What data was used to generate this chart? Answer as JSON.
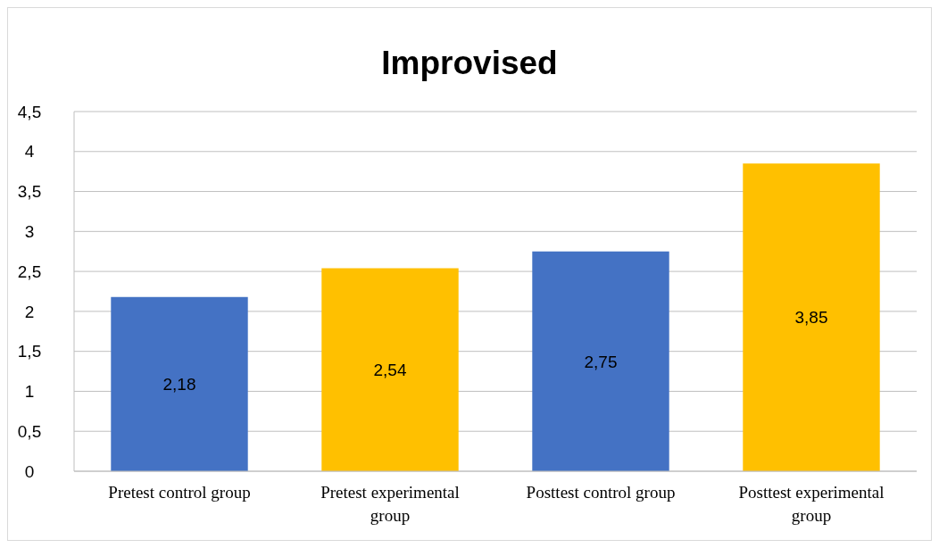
{
  "chart_data": {
    "type": "bar",
    "title": "Improvised",
    "categories": [
      "Pretest control group",
      "Pretest experimental group",
      "Posttest control group",
      "Posttest experimental group"
    ],
    "values": [
      2.18,
      2.54,
      2.75,
      3.85
    ],
    "colors": [
      "#4472c4",
      "#ffc000",
      "#4472c4",
      "#ffc000"
    ],
    "value_labels": [
      "2,18",
      "2,54",
      "2,75",
      "3,85"
    ],
    "ylim": [
      0,
      4.5
    ],
    "yticks": [
      0,
      {
        "value": 0.5,
        "label": "0,5"
      },
      1,
      {
        "value": 1.5,
        "label": "1,5"
      },
      2,
      {
        "value": 2.5,
        "label": "2,5"
      },
      3,
      {
        "value": 3.5,
        "label": "3,5"
      },
      4,
      {
        "value": 4.5,
        "label": "4,5"
      }
    ],
    "grid": "y"
  }
}
